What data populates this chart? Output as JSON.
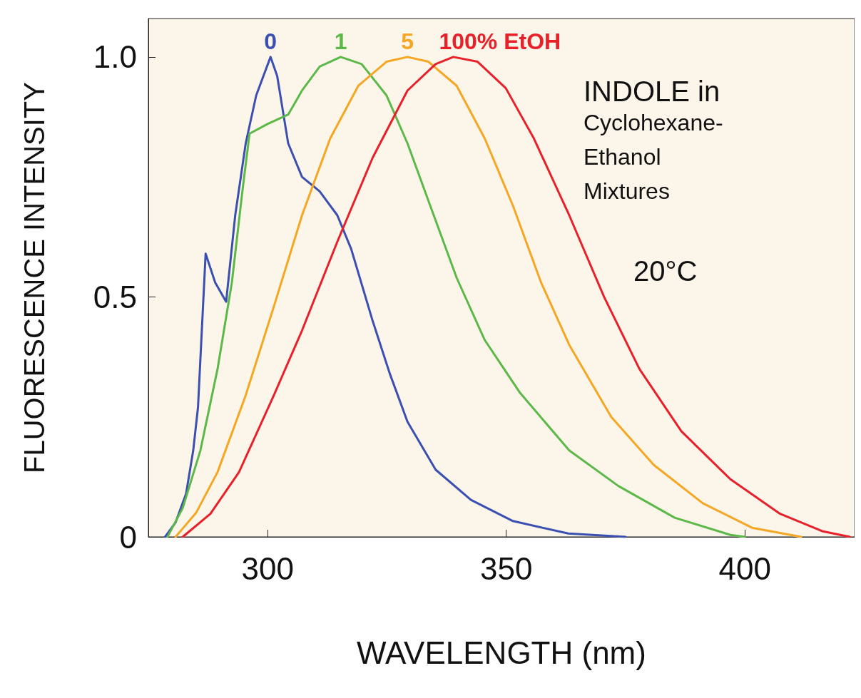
{
  "chart_data": {
    "type": "line",
    "xlabel": "WAVELENGTH (nm)",
    "ylabel": "FLUORESCENCE INTENSITY",
    "xlim": [
      275,
      423
    ],
    "ylim": [
      0,
      1.08
    ],
    "xticks": [
      300,
      350,
      400
    ],
    "yticks": [
      0,
      0.5,
      {
        "value": 1,
        "label": "1.0"
      }
    ],
    "grid": false,
    "legend": false,
    "marker": "none",
    "line_style": "solid",
    "annotations": [
      "INDOLE in",
      "Cyclohexane-",
      "Ethanol",
      "Mixtures",
      "20°C"
    ],
    "series": [
      {
        "name": "0",
        "color": "#3a4fb0",
        "x": [
          278.5,
          280.7,
          282.9,
          284.4,
          285.4,
          287,
          289,
          291.3,
          293.2,
          295.4,
          297.6,
          300.6,
          302,
          304.3,
          307.2,
          310.9,
          314.6,
          317.5,
          322,
          325.6,
          329.3,
          335.2,
          342.6,
          351.4,
          363,
          375
        ],
        "values": [
          0,
          0.03,
          0.09,
          0.18,
          0.27,
          0.59,
          0.53,
          0.49,
          0.67,
          0.82,
          0.92,
          1,
          0.96,
          0.82,
          0.75,
          0.72,
          0.67,
          0.6,
          0.45,
          0.34,
          0.24,
          0.14,
          0.077,
          0.033,
          0.007,
          0
        ]
      },
      {
        "name": "1",
        "color": "#5cb848",
        "x": [
          279,
          282.2,
          285.9,
          289.5,
          292.5,
          294.7,
          296.2,
          299.9,
          304.3,
          307.2,
          310.9,
          315.3,
          319.7,
          324.9,
          329.3,
          333.7,
          339.6,
          345.5,
          352.9,
          363.2,
          373.5,
          385.3,
          397,
          400
        ],
        "values": [
          0,
          0.06,
          0.18,
          0.35,
          0.53,
          0.72,
          0.84,
          0.86,
          0.88,
          0.93,
          0.98,
          1,
          0.985,
          0.92,
          0.82,
          0.7,
          0.54,
          0.41,
          0.3,
          0.18,
          0.106,
          0.04,
          0.004,
          0
        ]
      },
      {
        "name": "5",
        "color": "#f5a623",
        "x": [
          280.7,
          285,
          289.5,
          295.4,
          301.3,
          307.2,
          313.1,
          319,
          324.9,
          329.3,
          333.7,
          339.6,
          345.5,
          351.4,
          357.3,
          363.2,
          372,
          380.9,
          391.2,
          401.5,
          411.8
        ],
        "values": [
          0,
          0.05,
          0.135,
          0.295,
          0.48,
          0.67,
          0.83,
          0.94,
          0.99,
          1,
          0.99,
          0.94,
          0.83,
          0.69,
          0.53,
          0.4,
          0.25,
          0.15,
          0.07,
          0.019,
          0
        ]
      },
      {
        "name": "100% EtOH",
        "color": "#e8202a",
        "x": [
          282.2,
          288,
          294,
          301.3,
          307.2,
          314.6,
          322,
          329.3,
          335.2,
          338.9,
          344,
          349.9,
          355.8,
          363.2,
          370.5,
          377.9,
          386.7,
          397,
          407.4,
          416.2,
          422
        ],
        "values": [
          0,
          0.048,
          0.135,
          0.295,
          0.43,
          0.615,
          0.79,
          0.93,
          0.985,
          1,
          0.99,
          0.935,
          0.83,
          0.67,
          0.5,
          0.35,
          0.22,
          0.12,
          0.048,
          0.012,
          0
        ]
      }
    ]
  }
}
